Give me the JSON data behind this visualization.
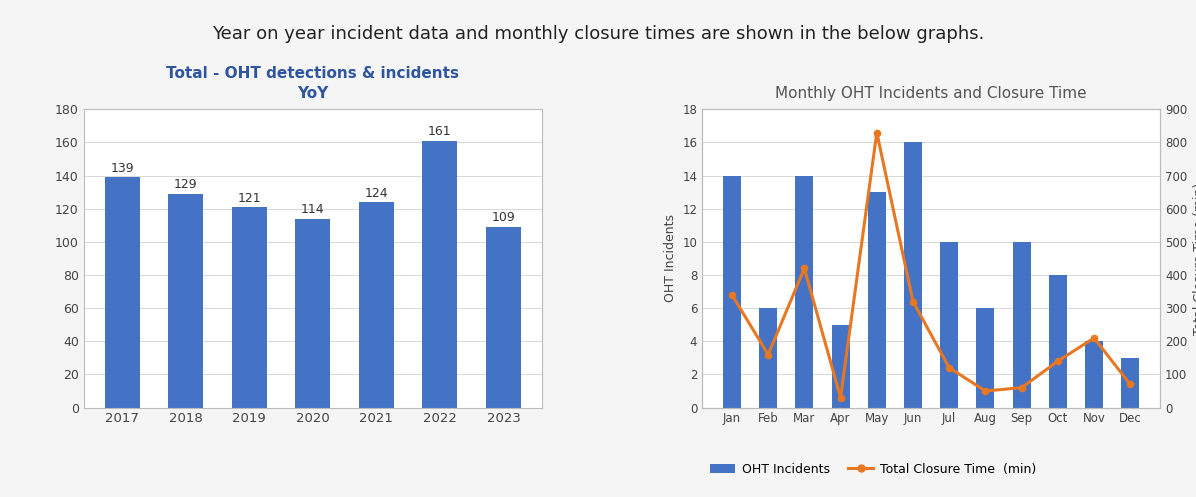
{
  "title_text": "Year on year incident data and monthly closure times are shown in the below graphs.",
  "bar1_years": [
    "2017",
    "2018",
    "2019",
    "2020",
    "2021",
    "2022",
    "2023"
  ],
  "bar1_values": [
    139,
    129,
    121,
    114,
    124,
    161,
    109
  ],
  "bar1_title_line1": "Total - OHT detections & incidents",
  "bar1_title_line2": "YoY",
  "bar1_color": "#4472C4",
  "bar1_ylim": [
    0,
    180
  ],
  "bar1_yticks": [
    0,
    20,
    40,
    60,
    80,
    100,
    120,
    140,
    160,
    180
  ],
  "chart2_title": "Monthly OHT Incidents and Closure Time",
  "months": [
    "Jan",
    "Feb",
    "Mar",
    "Apr",
    "May",
    "Jun",
    "Jul",
    "Aug",
    "Sep",
    "Oct",
    "Nov",
    "Dec"
  ],
  "monthly_incidents": [
    14,
    6,
    14,
    5,
    13,
    16,
    10,
    6,
    10,
    8,
    4,
    3
  ],
  "monthly_closure": [
    340,
    160,
    420,
    30,
    830,
    320,
    120,
    50,
    60,
    140,
    210,
    70
  ],
  "bar2_color": "#4472C4",
  "line_color": "#E87722",
  "incidents_ylim": [
    0,
    18
  ],
  "incidents_yticks": [
    0,
    2,
    4,
    6,
    8,
    10,
    12,
    14,
    16,
    18
  ],
  "closure_ylim": [
    0,
    900
  ],
  "closure_yticks": [
    0,
    100,
    200,
    300,
    400,
    500,
    600,
    700,
    800,
    900
  ],
  "legend_incidents": "OHT Incidents",
  "legend_closure": "Total Closure Time  (min)",
  "ylabel_incidents": "OHT Incidents",
  "ylabel_closure": "Total Closure Time (min)",
  "background_color": "#f5f5f5",
  "panel_bg": "#ffffff",
  "grid_color": "#d8d8d8",
  "title_color1": "#2E55A0",
  "title_color2": "#555555"
}
